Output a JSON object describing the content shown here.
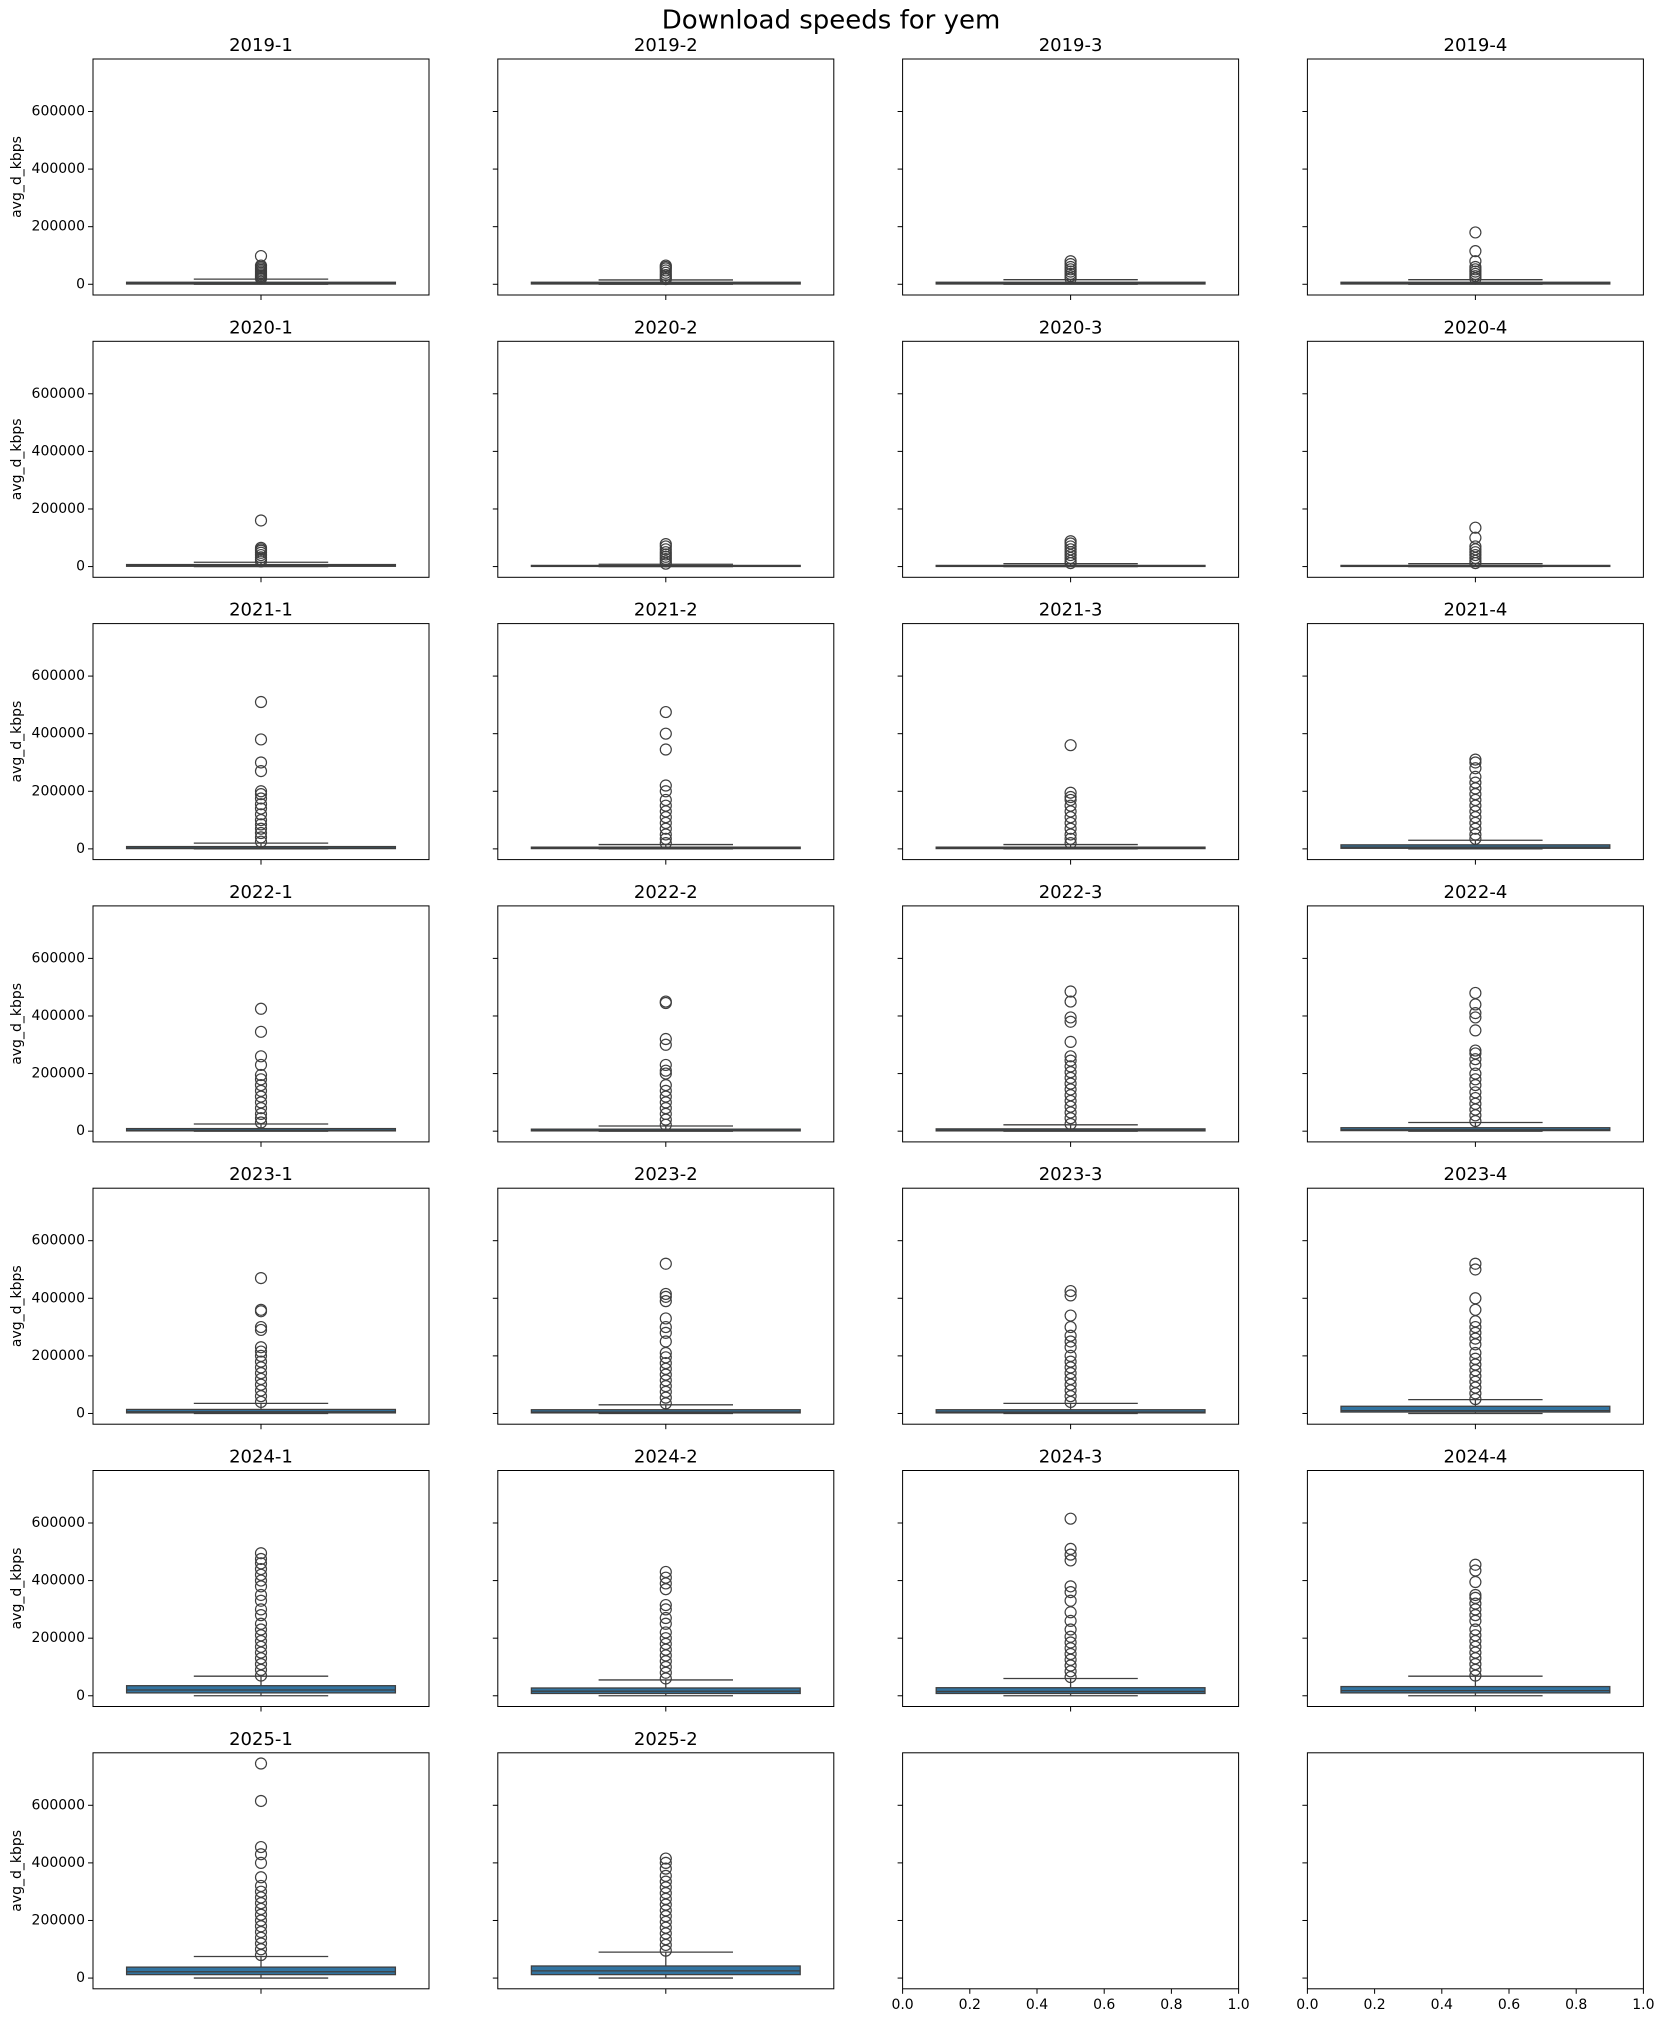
{
  "title": "Download speeds for yem",
  "chart_data": [
    {
      "type": "box",
      "title": "2019-1",
      "ylabel": "avg_d_kbps",
      "ylim": [
        -37250,
        782250
      ],
      "yticks": [
        0,
        200000,
        400000,
        600000
      ],
      "show_ytick_labels": true,
      "color": "#3274a1",
      "whisker_low": 0,
      "q1": 1000,
      "median": 3000,
      "q3": 7000,
      "whisker_high": 18000,
      "outliers": [
        20000,
        25000,
        30000,
        35000,
        40000,
        45000,
        50000,
        55000,
        60000,
        65000,
        98000
      ]
    },
    {
      "type": "box",
      "title": "2019-2",
      "ylim": [
        -37250,
        782250
      ],
      "yticks": [
        0,
        200000,
        400000,
        600000
      ],
      "show_ytick_labels": false,
      "color": "#3274a1",
      "whisker_low": 0,
      "q1": 1000,
      "median": 3000,
      "q3": 7000,
      "whisker_high": 15000,
      "outliers": [
        18000,
        25000,
        32000,
        40000,
        48000,
        55000,
        60000,
        65000
      ]
    },
    {
      "type": "box",
      "title": "2019-3",
      "ylim": [
        -37250,
        782250
      ],
      "yticks": [
        0,
        200000,
        400000,
        600000
      ],
      "show_ytick_labels": false,
      "color": "#3274a1",
      "whisker_low": 0,
      "q1": 1000,
      "median": 3000,
      "q3": 7000,
      "whisker_high": 16000,
      "outliers": [
        20000,
        28000,
        36000,
        44000,
        52000,
        60000,
        70000,
        80000
      ]
    },
    {
      "type": "box",
      "title": "2019-4",
      "ylim": [
        -37250,
        782250
      ],
      "yticks": [
        0,
        200000,
        400000,
        600000
      ],
      "show_ytick_labels": false,
      "color": "#3274a1",
      "whisker_low": 0,
      "q1": 1000,
      "median": 3000,
      "q3": 7000,
      "whisker_high": 16000,
      "outliers": [
        20000,
        28000,
        36000,
        44000,
        52000,
        60000,
        80000,
        115000,
        180000
      ]
    },
    {
      "type": "box",
      "title": "2020-1",
      "ylabel": "avg_d_kbps",
      "ylim": [
        -37250,
        782250
      ],
      "yticks": [
        0,
        200000,
        400000,
        600000
      ],
      "show_ytick_labels": true,
      "color": "#3274a1",
      "whisker_low": 0,
      "q1": 1000,
      "median": 3000,
      "q3": 7000,
      "whisker_high": 15000,
      "outliers": [
        18000,
        25000,
        32000,
        40000,
        48000,
        55000,
        60000,
        65000,
        160000
      ]
    },
    {
      "type": "box",
      "title": "2020-2",
      "ylim": [
        -37250,
        782250
      ],
      "yticks": [
        0,
        200000,
        400000,
        600000
      ],
      "show_ytick_labels": false,
      "color": "#3274a1",
      "whisker_low": 0,
      "q1": 500,
      "median": 1500,
      "q3": 4000,
      "whisker_high": 8000,
      "outliers": [
        10000,
        18000,
        26000,
        34000,
        42000,
        50000,
        60000,
        70000,
        78000
      ]
    },
    {
      "type": "box",
      "title": "2020-3",
      "ylim": [
        -37250,
        782250
      ],
      "yticks": [
        0,
        200000,
        400000,
        600000
      ],
      "show_ytick_labels": false,
      "color": "#3274a1",
      "whisker_low": 0,
      "q1": 500,
      "median": 1500,
      "q3": 4000,
      "whisker_high": 10000,
      "outliers": [
        12000,
        20000,
        30000,
        40000,
        50000,
        60000,
        70000,
        80000,
        88000
      ]
    },
    {
      "type": "box",
      "title": "2020-4",
      "ylim": [
        -37250,
        782250
      ],
      "yticks": [
        0,
        200000,
        400000,
        600000
      ],
      "show_ytick_labels": false,
      "color": "#3274a1",
      "whisker_low": 0,
      "q1": 500,
      "median": 1500,
      "q3": 4000,
      "whisker_high": 10000,
      "outliers": [
        12000,
        20000,
        30000,
        40000,
        50000,
        60000,
        70000,
        100000,
        135000
      ]
    },
    {
      "type": "box",
      "title": "2021-1",
      "ylabel": "avg_d_kbps",
      "ylim": [
        -37250,
        782250
      ],
      "yticks": [
        0,
        200000,
        400000,
        600000
      ],
      "show_ytick_labels": true,
      "color": "#3274a1",
      "whisker_low": 0,
      "q1": 1000,
      "median": 3000,
      "q3": 8000,
      "whisker_high": 20000,
      "outliers": [
        25000,
        40000,
        55000,
        70000,
        85000,
        100000,
        120000,
        140000,
        155000,
        175000,
        190000,
        200000,
        270000,
        300000,
        380000,
        510000
      ]
    },
    {
      "type": "box",
      "title": "2021-2",
      "ylim": [
        -37250,
        782250
      ],
      "yticks": [
        0,
        200000,
        400000,
        600000
      ],
      "show_ytick_labels": false,
      "color": "#3274a1",
      "whisker_low": 0,
      "q1": 1000,
      "median": 2500,
      "q3": 6000,
      "whisker_high": 15000,
      "outliers": [
        20000,
        35000,
        50000,
        70000,
        90000,
        110000,
        130000,
        150000,
        170000,
        200000,
        220000,
        345000,
        400000,
        475000
      ]
    },
    {
      "type": "box",
      "title": "2021-3",
      "ylim": [
        -37250,
        782250
      ],
      "yticks": [
        0,
        200000,
        400000,
        600000
      ],
      "show_ytick_labels": false,
      "color": "#3274a1",
      "whisker_low": 0,
      "q1": 1000,
      "median": 2500,
      "q3": 6000,
      "whisker_high": 15000,
      "outliers": [
        20000,
        35000,
        50000,
        70000,
        90000,
        110000,
        130000,
        150000,
        170000,
        180000,
        195000,
        360000
      ]
    },
    {
      "type": "box",
      "title": "2021-4",
      "ylim": [
        -37250,
        782250
      ],
      "yticks": [
        0,
        200000,
        400000,
        600000
      ],
      "show_ytick_labels": false,
      "color": "#3274a1",
      "whisker_low": 0,
      "q1": 2000,
      "median": 6000,
      "q3": 14000,
      "whisker_high": 30000,
      "outliers": [
        35000,
        50000,
        70000,
        90000,
        110000,
        130000,
        150000,
        170000,
        190000,
        210000,
        230000,
        250000,
        280000,
        300000,
        310000
      ]
    },
    {
      "type": "box",
      "title": "2022-1",
      "ylabel": "avg_d_kbps",
      "ylim": [
        -37250,
        782250
      ],
      "yticks": [
        0,
        200000,
        400000,
        600000
      ],
      "show_ytick_labels": true,
      "color": "#3274a1",
      "whisker_low": 0,
      "q1": 1000,
      "median": 3000,
      "q3": 9000,
      "whisker_high": 25000,
      "outliers": [
        30000,
        45000,
        60000,
        80000,
        100000,
        120000,
        140000,
        160000,
        180000,
        195000,
        230000,
        260000,
        345000,
        425000
      ]
    },
    {
      "type": "box",
      "title": "2022-2",
      "ylim": [
        -37250,
        782250
      ],
      "yticks": [
        0,
        200000,
        400000,
        600000
      ],
      "show_ytick_labels": false,
      "color": "#3274a1",
      "whisker_low": 0,
      "q1": 1000,
      "median": 2500,
      "q3": 7000,
      "whisker_high": 18000,
      "outliers": [
        22000,
        40000,
        60000,
        80000,
        100000,
        120000,
        140000,
        160000,
        200000,
        210000,
        230000,
        300000,
        320000,
        445000,
        450000
      ]
    },
    {
      "type": "box",
      "title": "2022-3",
      "ylim": [
        -37250,
        782250
      ],
      "yticks": [
        0,
        200000,
        400000,
        600000
      ],
      "show_ytick_labels": false,
      "color": "#3274a1",
      "whisker_low": 0,
      "q1": 1000,
      "median": 3000,
      "q3": 8000,
      "whisker_high": 22000,
      "outliers": [
        25000,
        45000,
        65000,
        85000,
        105000,
        125000,
        145000,
        165000,
        185000,
        205000,
        225000,
        245000,
        260000,
        310000,
        380000,
        395000,
        450000,
        485000
      ]
    },
    {
      "type": "box",
      "title": "2022-4",
      "ylim": [
        -37250,
        782250
      ],
      "yticks": [
        0,
        200000,
        400000,
        600000
      ],
      "show_ytick_labels": false,
      "color": "#3274a1",
      "whisker_low": 0,
      "q1": 2000,
      "median": 5000,
      "q3": 12000,
      "whisker_high": 30000,
      "outliers": [
        35000,
        55000,
        75000,
        95000,
        115000,
        135000,
        160000,
        180000,
        200000,
        230000,
        250000,
        270000,
        280000,
        350000,
        395000,
        410000,
        440000,
        480000
      ]
    },
    {
      "type": "box",
      "title": "2023-1",
      "ylabel": "avg_d_kbps",
      "ylim": [
        -37250,
        782250
      ],
      "yticks": [
        0,
        200000,
        400000,
        600000
      ],
      "show_ytick_labels": true,
      "color": "#3274a1",
      "whisker_low": 0,
      "q1": 2000,
      "median": 6000,
      "q3": 14000,
      "whisker_high": 35000,
      "outliers": [
        40000,
        60000,
        80000,
        100000,
        120000,
        140000,
        160000,
        180000,
        200000,
        215000,
        230000,
        290000,
        300000,
        355000,
        360000,
        470000
      ]
    },
    {
      "type": "box",
      "title": "2023-2",
      "ylim": [
        -37250,
        782250
      ],
      "yticks": [
        0,
        200000,
        400000,
        600000
      ],
      "show_ytick_labels": false,
      "color": "#3274a1",
      "whisker_low": 0,
      "q1": 2000,
      "median": 5000,
      "q3": 13000,
      "whisker_high": 30000,
      "outliers": [
        35000,
        55000,
        75000,
        95000,
        115000,
        135000,
        155000,
        175000,
        195000,
        210000,
        250000,
        280000,
        300000,
        330000,
        390000,
        405000,
        415000,
        520000
      ]
    },
    {
      "type": "box",
      "title": "2023-3",
      "ylim": [
        -37250,
        782250
      ],
      "yticks": [
        0,
        200000,
        400000,
        600000
      ],
      "show_ytick_labels": false,
      "color": "#3274a1",
      "whisker_low": 0,
      "q1": 2000,
      "median": 5000,
      "q3": 13000,
      "whisker_high": 35000,
      "outliers": [
        40000,
        60000,
        80000,
        100000,
        120000,
        140000,
        160000,
        180000,
        200000,
        230000,
        250000,
        270000,
        300000,
        340000,
        410000,
        425000
      ]
    },
    {
      "type": "box",
      "title": "2023-4",
      "ylim": [
        -37250,
        782250
      ],
      "yticks": [
        0,
        200000,
        400000,
        600000
      ],
      "show_ytick_labels": false,
      "color": "#3274a1",
      "whisker_low": 0,
      "q1": 5000,
      "median": 10000,
      "q3": 25000,
      "whisker_high": 48000,
      "outliers": [
        50000,
        70000,
        90000,
        110000,
        130000,
        150000,
        170000,
        190000,
        210000,
        240000,
        260000,
        280000,
        300000,
        320000,
        360000,
        400000,
        500000,
        520000
      ]
    },
    {
      "type": "box",
      "title": "2024-1",
      "ylabel": "avg_d_kbps",
      "ylim": [
        -37250,
        782250
      ],
      "yticks": [
        0,
        200000,
        400000,
        600000
      ],
      "show_ytick_labels": true,
      "color": "#3274a1",
      "whisker_low": 0,
      "q1": 10000,
      "median": 20000,
      "q3": 35000,
      "whisker_high": 68000,
      "outliers": [
        70000,
        90000,
        110000,
        130000,
        150000,
        170000,
        190000,
        210000,
        230000,
        250000,
        280000,
        300000,
        330000,
        350000,
        380000,
        400000,
        420000,
        440000,
        460000,
        475000,
        495000
      ]
    },
    {
      "type": "box",
      "title": "2024-2",
      "ylim": [
        -37250,
        782250
      ],
      "yticks": [
        0,
        200000,
        400000,
        600000
      ],
      "show_ytick_labels": false,
      "color": "#3274a1",
      "whisker_low": 0,
      "q1": 8000,
      "median": 16000,
      "q3": 27000,
      "whisker_high": 55000,
      "outliers": [
        60000,
        80000,
        100000,
        120000,
        140000,
        160000,
        180000,
        200000,
        220000,
        250000,
        270000,
        300000,
        315000,
        370000,
        390000,
        410000,
        430000
      ]
    },
    {
      "type": "box",
      "title": "2024-3",
      "ylim": [
        -37250,
        782250
      ],
      "yticks": [
        0,
        200000,
        400000,
        600000
      ],
      "show_ytick_labels": false,
      "color": "#3274a1",
      "whisker_low": 0,
      "q1": 8000,
      "median": 15000,
      "q3": 28000,
      "whisker_high": 60000,
      "outliers": [
        65000,
        85000,
        105000,
        125000,
        145000,
        165000,
        185000,
        205000,
        230000,
        260000,
        290000,
        330000,
        360000,
        380000,
        470000,
        490000,
        510000,
        615000
      ]
    },
    {
      "type": "box",
      "title": "2024-4",
      "ylim": [
        -37250,
        782250
      ],
      "yticks": [
        0,
        200000,
        400000,
        600000
      ],
      "show_ytick_labels": false,
      "color": "#3274a1",
      "whisker_low": 0,
      "q1": 10000,
      "median": 18000,
      "q3": 32000,
      "whisker_high": 68000,
      "outliers": [
        70000,
        90000,
        110000,
        130000,
        150000,
        170000,
        190000,
        210000,
        230000,
        260000,
        280000,
        300000,
        320000,
        340000,
        350000,
        395000,
        435000,
        455000
      ]
    },
    {
      "type": "box",
      "title": "2025-1",
      "ylabel": "avg_d_kbps",
      "ylim": [
        -37250,
        782250
      ],
      "yticks": [
        0,
        200000,
        400000,
        600000
      ],
      "show_ytick_labels": true,
      "color": "#3274a1",
      "whisker_low": 0,
      "q1": 12000,
      "median": 22000,
      "q3": 38000,
      "whisker_high": 75000,
      "outliers": [
        80000,
        100000,
        120000,
        140000,
        160000,
        180000,
        200000,
        220000,
        240000,
        260000,
        280000,
        300000,
        320000,
        350000,
        400000,
        430000,
        455000,
        615000,
        745000
      ]
    },
    {
      "type": "box",
      "title": "2025-2",
      "ylim": [
        -37250,
        782250
      ],
      "yticks": [
        0,
        200000,
        400000,
        600000
      ],
      "show_ytick_labels": false,
      "color": "#3274a1",
      "whisker_low": 0,
      "q1": 12000,
      "median": 25000,
      "q3": 42000,
      "whisker_high": 90000,
      "outliers": [
        95000,
        115000,
        135000,
        155000,
        175000,
        195000,
        215000,
        235000,
        255000,
        275000,
        295000,
        315000,
        335000,
        355000,
        380000,
        400000,
        415000
      ]
    },
    {
      "type": "axes",
      "ylim": [
        -37250,
        782250
      ],
      "yticks": [
        0,
        200000,
        400000,
        600000
      ],
      "show_ytick_labels": false,
      "xlim": [
        0,
        1
      ],
      "xticks": [
        {
          "value": 0,
          "label": "0.0"
        },
        {
          "value": 0.2,
          "label": "0.2"
        },
        {
          "value": 0.4,
          "label": "0.4"
        },
        {
          "value": 0.6,
          "label": "0.6"
        },
        {
          "value": 0.8,
          "label": "0.8"
        },
        {
          "value": 1,
          "label": "1.0"
        }
      ]
    },
    {
      "type": "axes",
      "ylim": [
        -37250,
        782250
      ],
      "yticks": [
        0,
        200000,
        400000,
        600000
      ],
      "show_ytick_labels": false,
      "xlim": [
        0,
        1
      ],
      "xticks": [
        {
          "value": 0,
          "label": "0.0"
        },
        {
          "value": 0.2,
          "label": "0.2"
        },
        {
          "value": 0.4,
          "label": "0.4"
        },
        {
          "value": 0.6,
          "label": "0.6"
        },
        {
          "value": 0.8,
          "label": "0.8"
        },
        {
          "value": 1,
          "label": "1.0"
        }
      ]
    }
  ]
}
